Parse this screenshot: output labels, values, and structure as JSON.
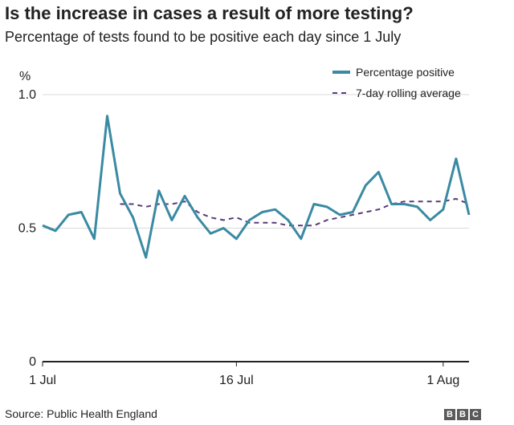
{
  "title": "Is the increase in cases a result of more testing?",
  "subtitle": "Percentage of tests found to be positive each day since 1 July",
  "source": "Source: Public Health England",
  "logo": [
    "B",
    "B",
    "C"
  ],
  "colors": {
    "series_primary": "#3a8aa3",
    "series_average": "#5a3a7a",
    "axis": "#222222",
    "grid": "#d9d9d9"
  },
  "chart_data": {
    "type": "line",
    "ylabel": "%",
    "ylim": [
      0,
      1.0
    ],
    "yticks": [
      {
        "value": 0,
        "label": "0"
      },
      {
        "value": 0.5,
        "label": "0.5"
      },
      {
        "value": 1.0,
        "label": "1.0"
      }
    ],
    "xlim": [
      1,
      34
    ],
    "xticks": [
      {
        "day": 1,
        "label": "1 Jul"
      },
      {
        "day": 16,
        "label": "16 Jul"
      },
      {
        "day": 32,
        "label": "1 Aug"
      }
    ],
    "legend_position": "top-right",
    "series": [
      {
        "name": "Percentage positive",
        "style": "solid",
        "x": [
          1,
          2,
          3,
          4,
          5,
          6,
          7,
          8,
          9,
          10,
          11,
          12,
          13,
          14,
          15,
          16,
          17,
          18,
          19,
          20,
          21,
          22,
          23,
          24,
          25,
          26,
          27,
          28,
          29,
          30,
          31,
          32,
          33,
          34
        ],
        "values": [
          0.51,
          0.49,
          0.55,
          0.56,
          0.46,
          0.92,
          0.63,
          0.54,
          0.39,
          0.64,
          0.53,
          0.62,
          0.54,
          0.48,
          0.5,
          0.46,
          0.53,
          0.56,
          0.57,
          0.53,
          0.46,
          0.59,
          0.58,
          0.55,
          0.56,
          0.66,
          0.71,
          0.59,
          0.59,
          0.58,
          0.53,
          0.57,
          0.76,
          0.55
        ]
      },
      {
        "name": "7-day rolling average",
        "style": "dashed",
        "x": [
          7,
          8,
          9,
          10,
          11,
          12,
          13,
          14,
          15,
          16,
          17,
          18,
          19,
          20,
          21,
          22,
          23,
          24,
          25,
          26,
          27,
          28,
          29,
          30,
          31,
          32,
          33,
          34
        ],
        "values": [
          0.59,
          0.59,
          0.58,
          0.59,
          0.59,
          0.6,
          0.56,
          0.54,
          0.53,
          0.54,
          0.52,
          0.52,
          0.52,
          0.51,
          0.51,
          0.51,
          0.53,
          0.54,
          0.55,
          0.56,
          0.57,
          0.59,
          0.6,
          0.6,
          0.6,
          0.6,
          0.61,
          0.59
        ]
      }
    ]
  }
}
